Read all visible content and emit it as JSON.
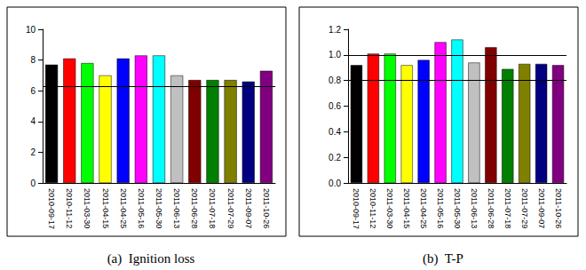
{
  "chart_data": [
    {
      "type": "bar",
      "title": "(a)  Ignition loss",
      "categories": [
        "2010-09-17",
        "2010-11-12",
        "2011-03-30",
        "2011-04-15",
        "2011-04-25",
        "2011-05-16",
        "2011-05-30",
        "2011-06-13",
        "2011-06-28",
        "2011-07-18",
        "2011-07-29",
        "2011-09-07",
        "2011-10-26"
      ],
      "values": [
        7.7,
        8.1,
        7.8,
        7.0,
        8.1,
        8.3,
        8.3,
        7.0,
        6.7,
        6.7,
        6.7,
        6.6,
        7.3
      ],
      "colors": [
        "#000000",
        "#ff0000",
        "#00ff00",
        "#ffff00",
        "#0000ff",
        "#ff00ff",
        "#00ffff",
        "#c0c0c0",
        "#800000",
        "#008000",
        "#808000",
        "#000080",
        "#800080"
      ],
      "ylim": [
        0,
        10
      ],
      "yticks": [
        0,
        2,
        4,
        6,
        8,
        10
      ],
      "hlines": [
        6.3
      ],
      "grid": false
    },
    {
      "type": "bar",
      "title": "(b)  T-P",
      "categories": [
        "2010-09-17",
        "2010-11-12",
        "2011-03-30",
        "2011-04-15",
        "2011-04-25",
        "2011-05-16",
        "2011-05-30",
        "2011-06-13",
        "2011-06-28",
        "2011-07-18",
        "2011-07-29",
        "2011-09-07",
        "2011-10-26"
      ],
      "values": [
        0.92,
        1.01,
        1.01,
        0.92,
        0.96,
        1.1,
        1.12,
        0.94,
        1.06,
        0.89,
        0.93,
        0.93,
        0.92
      ],
      "colors": [
        "#000000",
        "#ff0000",
        "#00ff00",
        "#ffff00",
        "#0000ff",
        "#ff00ff",
        "#00ffff",
        "#c0c0c0",
        "#800000",
        "#008000",
        "#808000",
        "#000080",
        "#800080"
      ],
      "ylim": [
        0,
        1.2
      ],
      "yticks": [
        {
          "value": 0,
          "label": "0.0"
        },
        {
          "value": 0.2,
          "label": "0.2"
        },
        {
          "value": 0.4,
          "label": "0.4"
        },
        {
          "value": 0.6,
          "label": "0.6"
        },
        {
          "value": 0.8,
          "label": "0.8"
        },
        {
          "value": 1.0,
          "label": "1.0"
        },
        {
          "value": 1.2,
          "label": "1.2"
        }
      ],
      "hlines": [
        0.8,
        1.0
      ],
      "grid": false
    }
  ]
}
